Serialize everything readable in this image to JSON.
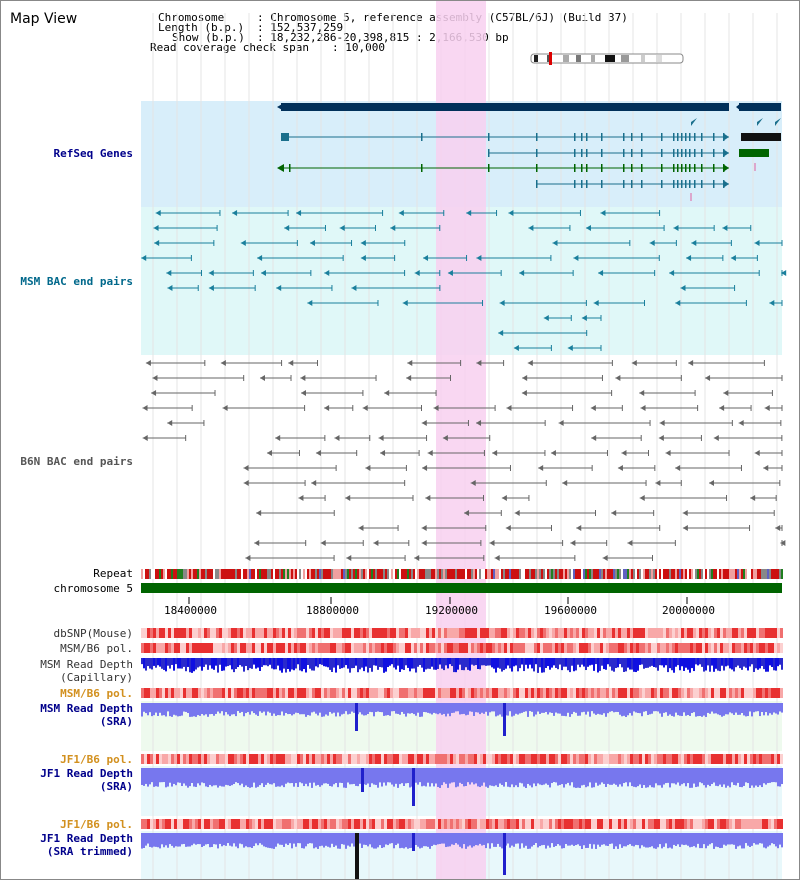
{
  "header": {
    "title": "Map View",
    "chromosome_key": "Chromosome",
    "chromosome_val": ": Chromosome 5, reference assembly (C57BL/6J) (Build 37)",
    "length_key": "Length (b.p.)",
    "length_val": ": 152,537,259",
    "show_key": "Show (b.p.)",
    "show_val": ": 18,232,286-20,398,815 : 2,166,530 bp",
    "coverage_key": "Read coverage check span",
    "coverage_val": ": 10,000"
  },
  "tracks": {
    "refseq": {
      "label": "RefSeq Genes",
      "color": "#00008b"
    },
    "msm_bac": {
      "label": "MSM BAC end pairs",
      "color": "#00688b"
    },
    "b6n_bac": {
      "label": "B6N BAC end pairs",
      "color": "#555555"
    },
    "repeat": {
      "label": "Repeat"
    },
    "chromosome": {
      "label": "chromosome 5"
    },
    "dbsnp": {
      "label": "dbSNP(Mouse)"
    },
    "msm_b6_pol_1": {
      "label": "MSM/B6 pol."
    },
    "msm_depth_cap": {
      "label1": "MSM Read Depth",
      "label2": "(Capillary)"
    },
    "msm_b6_pol_2": {
      "label": "MSM/B6 pol.",
      "color": "#d2691e"
    },
    "msm_depth_sra": {
      "label1": "MSM Read Depth",
      "label2": "(SRA)",
      "color": "#00008b"
    },
    "jf1_b6_pol_1": {
      "label": "JF1/B6 pol.",
      "color": "#d2901e"
    },
    "jf1_depth_sra": {
      "label1": "JF1 Read Depth",
      "label2": "(SRA)",
      "color": "#00008b"
    },
    "jf1_b6_pol_2": {
      "label": "JF1/B6 pol.",
      "color": "#d2901e"
    },
    "jf1_depth_trim": {
      "label1": "JF1 Read Depth",
      "label2": "(SRA trimmed)",
      "color": "#00008b"
    }
  },
  "axis": {
    "ticks": [
      "18400000",
      "18800000",
      "19200000",
      "19600000",
      "20000000"
    ]
  },
  "colors": {
    "highlight": "#f8d0f0",
    "refseq_bg": "#d8eefa",
    "msm_bg": "#e0f8f8",
    "chrom_bar": "#006400",
    "gene_dark": "#00305a",
    "gene_blue": "#1a6f8c",
    "gene_green": "#006400",
    "depth_blue": "#3333cc",
    "depth_light": "#7777ee"
  }
}
